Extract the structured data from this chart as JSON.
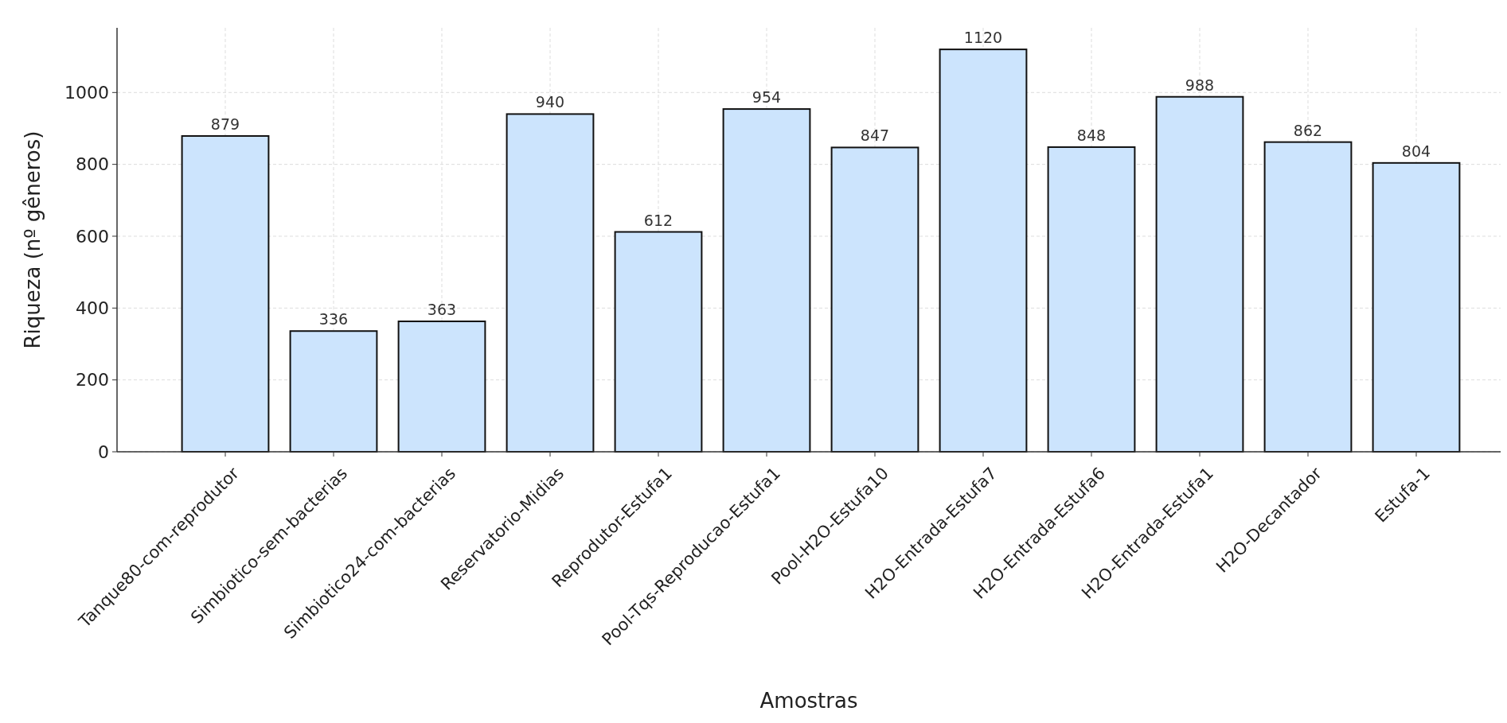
{
  "chart_data": {
    "type": "bar",
    "xlabel": "Amostras",
    "ylabel": "Riqueza (nº gêneros)",
    "categories": [
      "Tanque80-com-reprodutor",
      "Simbiotico-sem-bacterias",
      "Simbiotico24-com-bacterias",
      "Reservatorio-Midias",
      "Reprodutor-Estufa1",
      "Pool-Tqs-Reproducao-Estufa1",
      "Pool-H2O-Estufa10",
      "H2O-Entrada-Estufa7",
      "H2O-Entrada-Estufa6",
      "H2O-Entrada-Estufa1",
      "H2O-Decantador",
      "Estufa-1"
    ],
    "values": [
      879,
      336,
      363,
      940,
      612,
      954,
      847,
      1120,
      848,
      988,
      862,
      804
    ],
    "color": "#cce4fd",
    "ylim": [
      0,
      1180
    ],
    "yticks": [
      0,
      200,
      400,
      600,
      800,
      1000
    ],
    "grid": true,
    "data_labels": true
  }
}
